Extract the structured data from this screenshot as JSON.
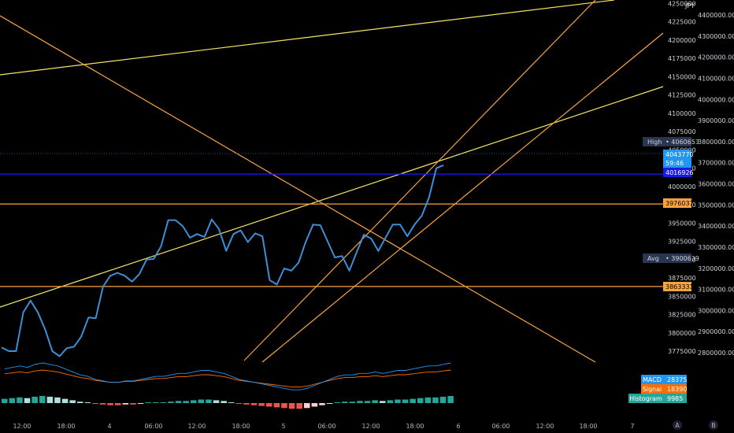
{
  "currency": "JPY",
  "chart_data": {
    "type": "line",
    "title": "",
    "xlabel": "",
    "ylabel": "",
    "x_tick_labels": [
      "12:00",
      "18:00",
      "4",
      "06:00",
      "12:00",
      "18:00",
      "5",
      "06:00",
      "12:00",
      "18:00",
      "6",
      "06:00",
      "12:00",
      "18:00",
      "7"
    ],
    "axis_left": {
      "ticks": [
        4250000,
        4225000,
        4200000,
        4175000,
        4150000,
        4125000,
        4100000,
        4075000,
        4050000,
        4025000,
        4000000,
        3975000,
        3950000,
        3925000,
        3900000,
        3875000,
        3850000,
        3825000,
        3800000,
        3775000
      ],
      "tick_labels": [
        "4250000",
        "4225000",
        "4200000",
        "4175000",
        "4150000",
        "4125000",
        "4100000",
        "4075000",
        "4050000",
        "4025000",
        "4000000",
        "3975000",
        "3950000",
        "3925000",
        "3900000",
        "3875000",
        "3850000",
        "3825000",
        "3800000",
        "3775000"
      ]
    },
    "axis_right": {
      "ticks": [
        4400000,
        4300000,
        4200000,
        4100000,
        4000000,
        3900000,
        3800000,
        3700000,
        3600000,
        3500000,
        3400000,
        3300000,
        3200000,
        3100000,
        3000000,
        2900000,
        2800000
      ],
      "tick_labels": [
        "4400000.00",
        "4300000.00",
        "4200000.00",
        "4100000.00",
        "4000000.00",
        "3900000.00",
        "3800000.00",
        "3700000.00",
        "3600000.00",
        "3500000.00",
        "3400000.00",
        "3300000.00",
        "3200000.00",
        "3100000.00",
        "3000000.00",
        "2900000.00",
        "2800000.00"
      ]
    },
    "price_line": {
      "color": "#3d8fd6",
      "values": [
        3780000,
        3775000,
        3775000,
        3828000,
        3844000,
        3828000,
        3805000,
        3775000,
        3768000,
        3779000,
        3781000,
        3795000,
        3821000,
        3820000,
        3863000,
        3878000,
        3882000,
        3878000,
        3870000,
        3880000,
        3900000,
        3901000,
        3918000,
        3954000,
        3954000,
        3946000,
        3930000,
        3935000,
        3931000,
        3955000,
        3942000,
        3912000,
        3935000,
        3940000,
        3924000,
        3936000,
        3932000,
        3872000,
        3866000,
        3888000,
        3885000,
        3896000,
        3925000,
        3948000,
        3947000,
        3925000,
        3903000,
        3905000,
        3885000,
        3910000,
        3934000,
        3929000,
        3912000,
        3930000,
        3948000,
        3948000,
        3932000,
        3948000,
        3960000,
        3985000,
        4025000,
        4029000
      ]
    },
    "macd": {
      "macd_value": 28375,
      "signal_value": 18390,
      "histogram_value": 9985,
      "macd_color": "#2196f3",
      "signal_color": "#ff6d00",
      "histogram_colors": {
        "pos_strong": "#26a69a",
        "pos_weak": "#b2dfdb",
        "neg_strong": "#ef5350",
        "neg_weak": "#ffcdd2"
      },
      "histogram": [
        6,
        7,
        8,
        7,
        9,
        10,
        9,
        8,
        6,
        4,
        2,
        1,
        -1,
        -2,
        -3,
        -3,
        -2,
        -2,
        -1,
        0,
        1,
        1,
        2,
        3,
        3,
        4,
        5,
        5,
        4,
        3,
        1,
        -1,
        -2,
        -3,
        -4,
        -5,
        -6,
        -7,
        -8,
        -8,
        -7,
        -5,
        -3,
        -1,
        1,
        2,
        2,
        3,
        3,
        4,
        3,
        4,
        5,
        5,
        6,
        7,
        8,
        8,
        9,
        10
      ]
    },
    "price_tags": [
      {
        "label": "High",
        "value": "4060653",
        "kind": "dark"
      },
      {
        "value": "4043770",
        "kind": "blue"
      },
      {
        "value": "59:46",
        "kind": "blue"
      },
      {
        "value": "4016926",
        "kind": "navy"
      },
      {
        "value": "3976037",
        "kind": "orange"
      },
      {
        "label": "Avg",
        "value": "3900639",
        "kind": "dark"
      },
      {
        "value": "3863331",
        "kind": "orange"
      }
    ],
    "horizontal_levels": [
      {
        "value": 4016926,
        "color": "#1a1aff"
      },
      {
        "value": 3976037,
        "color": "#f7a440"
      },
      {
        "value": 3863331,
        "color": "#f7a440"
      }
    ],
    "macd_tags": [
      {
        "label": "MACD",
        "value": "28375",
        "color": "#2196f3"
      },
      {
        "label": "Signal",
        "value": "18390",
        "color": "#ff6d00"
      },
      {
        "label": "Histogram",
        "value": "9985",
        "color": "#26a69a"
      }
    ],
    "grid": false,
    "legend": "none"
  },
  "corner_buttons": {
    "a": "A",
    "b": "B"
  }
}
